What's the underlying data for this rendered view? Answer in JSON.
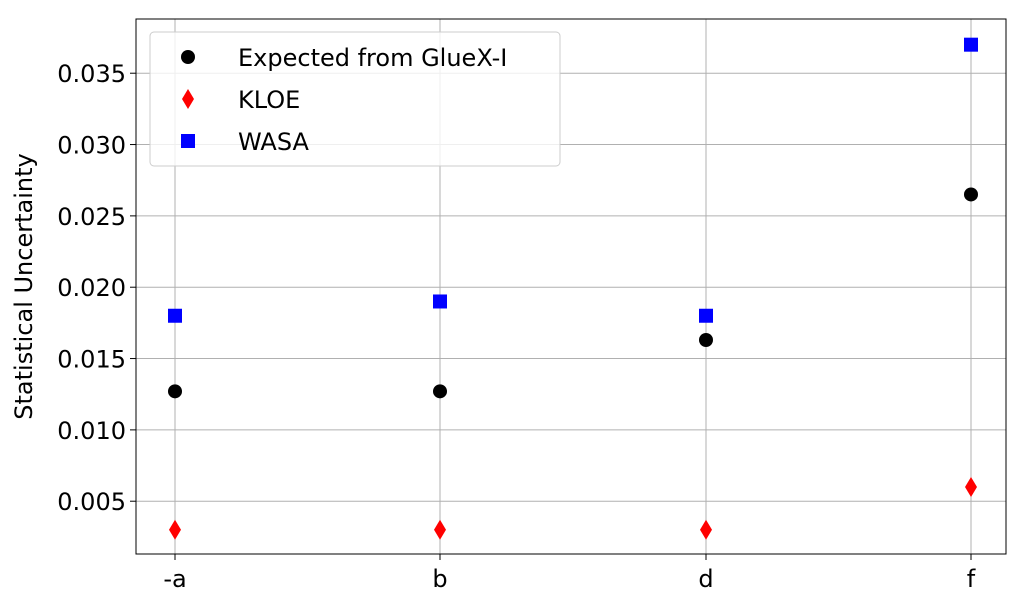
{
  "chart_data": {
    "type": "scatter",
    "categories": [
      "-a",
      "b",
      "d",
      "f"
    ],
    "ylabel": "Statistical Uncertainty",
    "xlabel": "",
    "title": "",
    "ylim": [
      0.0013,
      0.0388
    ],
    "yticks": [
      0.005,
      0.01,
      0.015,
      0.02,
      0.025,
      0.03,
      0.035
    ],
    "ytick_labels": [
      "0.005",
      "0.010",
      "0.015",
      "0.020",
      "0.025",
      "0.030",
      "0.035"
    ],
    "grid": true,
    "legend_position": "top-left",
    "series": [
      {
        "name": "Expected from GlueX-I",
        "marker": "circle",
        "color": "#000000",
        "values": [
          0.0127,
          0.0127,
          0.0163,
          0.0265
        ]
      },
      {
        "name": "KLOE",
        "marker": "diamond",
        "color": "#ff0000",
        "values": [
          0.003,
          0.003,
          0.003,
          0.006
        ]
      },
      {
        "name": "WASA",
        "marker": "square",
        "color": "#0000ff",
        "values": [
          0.018,
          0.019,
          0.018,
          0.037
        ]
      }
    ]
  }
}
